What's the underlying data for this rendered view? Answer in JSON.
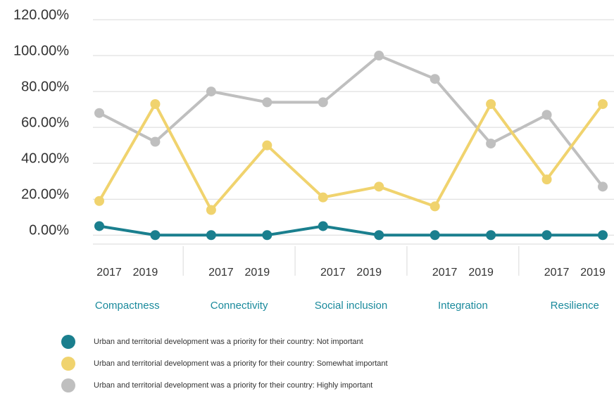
{
  "chart_data": {
    "type": "line",
    "categories": [
      "2017",
      "2019",
      "2017",
      "2019",
      "2017",
      "2019",
      "2017",
      "2019",
      "2017",
      "2019"
    ],
    "groups": [
      "Compactness",
      "Connectivity",
      "Social inclusion",
      "Integration",
      "Resilience"
    ],
    "series": [
      {
        "name": "Urban and territorial development was a priority for their country: Not important",
        "color": "#1a7f8e",
        "values": [
          5,
          0,
          0,
          0,
          5,
          0,
          0,
          0,
          0,
          0
        ]
      },
      {
        "name": "Urban and territorial development was a priority for their country: Somewhat important",
        "color": "#f0d36e",
        "values": [
          19,
          73,
          14,
          50,
          21,
          27,
          16,
          73,
          31,
          73
        ]
      },
      {
        "name": "Urban and territorial development was a priority for their country: Highly important",
        "color": "#bfbfbf",
        "values": [
          68,
          52,
          80,
          74,
          74,
          100,
          87,
          51,
          67,
          27
        ]
      }
    ],
    "ylim": [
      -5,
      120
    ],
    "yticks": [
      {
        "value": 0,
        "label": "0.00%"
      },
      {
        "value": 20,
        "label": "20.00%"
      },
      {
        "value": 40,
        "label": "40.00%"
      },
      {
        "value": 60,
        "label": "60.00%"
      },
      {
        "value": 80,
        "label": "80.00%"
      },
      {
        "value": 100,
        "label": "100.00%"
      },
      {
        "value": 120,
        "label": "120.00%"
      }
    ],
    "grid": true
  }
}
